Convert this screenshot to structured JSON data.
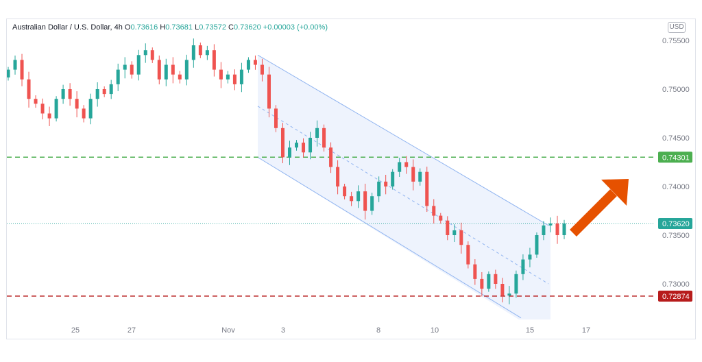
{
  "header": {
    "symbol": "Australian Dollar / U.S. Dollar",
    "interval": "4h",
    "open_label": "O",
    "open": "0.73616",
    "high_label": "H",
    "high": "0.73681",
    "low_label": "L",
    "low": "0.73572",
    "close_label": "C",
    "close": "0.73620",
    "change": "+0.00003 (+0.00%)",
    "currency": "USD"
  },
  "colors": {
    "up": "#26a69a",
    "down": "#ef5350",
    "channel": "#90b4f0",
    "channel_fill": "#eef3fd",
    "support": "#b71c1c",
    "resistance": "#4caf50",
    "current": "#26a69a",
    "arrow": "#e65100"
  },
  "chart_data": {
    "type": "candlestick",
    "title": "Australian Dollar / U.S. Dollar, 4h",
    "y_ticks": [
      "0.75500",
      "0.75000",
      "0.74500",
      "0.74000",
      "0.73500",
      "0.73000"
    ],
    "ylim": [
      0.7268,
      0.7565
    ],
    "x_ticks": [
      "25",
      "27",
      "Nov",
      "3",
      "8",
      "10",
      "15",
      "17"
    ],
    "horizontal_levels": [
      {
        "value": 0.74301,
        "label": "0.74301",
        "style": "dashed",
        "color": "#4caf50"
      },
      {
        "value": 0.72874,
        "label": "0.72874",
        "style": "dashed",
        "color": "#b71c1c"
      },
      {
        "value": 0.7362,
        "label": "0.73620",
        "style": "dotted",
        "color": "#26a69a"
      }
    ],
    "close_series": [
      0.752,
      0.753,
      0.751,
      0.749,
      0.7485,
      0.7475,
      0.747,
      0.749,
      0.75,
      0.749,
      0.748,
      0.747,
      0.749,
      0.75,
      0.7495,
      0.7505,
      0.752,
      0.7525,
      0.7515,
      0.7535,
      0.754,
      0.753,
      0.751,
      0.7525,
      0.7515,
      0.751,
      0.753,
      0.7545,
      0.7535,
      0.754,
      0.752,
      0.751,
      0.7515,
      0.7505,
      0.752,
      0.753,
      0.7525,
      0.7515,
      0.748,
      0.746,
      0.743,
      0.744,
      0.7445,
      0.7435,
      0.745,
      0.746,
      0.744,
      0.742,
      0.74,
      0.739,
      0.7385,
      0.7395,
      0.7375,
      0.739,
      0.7405,
      0.74,
      0.7415,
      0.7425,
      0.742,
      0.7405,
      0.7415,
      0.738,
      0.737,
      0.7365,
      0.735,
      0.7355,
      0.734,
      0.732,
      0.7305,
      0.7295,
      0.731,
      0.73,
      0.7288,
      0.729,
      0.731,
      0.7325,
      0.733,
      0.735,
      0.736,
      0.7362,
      0.735,
      0.7362
    ],
    "channel": {
      "upper": [
        {
          "x": "Nov 2",
          "y": 0.7535
        },
        {
          "x": "Nov 16",
          "y": 0.736
        }
      ],
      "lower": [
        {
          "x": "Nov 2",
          "y": 0.743
        },
        {
          "x": "Nov 14",
          "y": 0.7265
        }
      ],
      "midline": "dashed"
    },
    "arrow_direction": "up-right"
  }
}
